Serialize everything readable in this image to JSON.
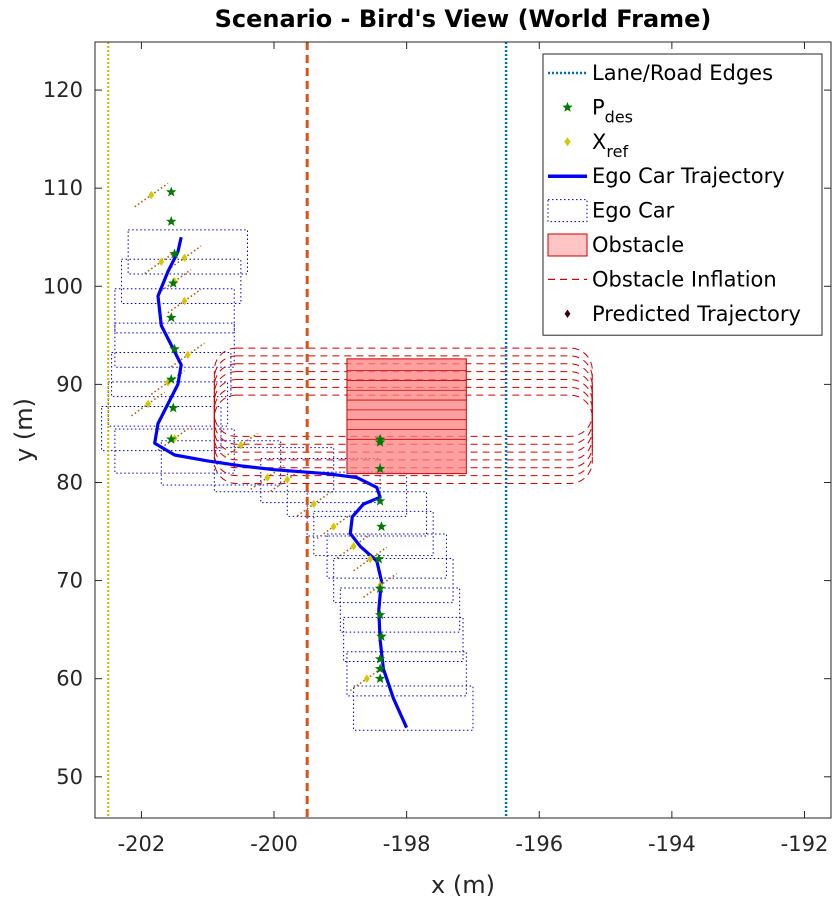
{
  "chart_data": {
    "type": "scatter",
    "title": "Scenario - Bird's View (World Frame)",
    "xlabel": "x (m)",
    "ylabel": "y (m)",
    "xlim": [
      -202.7,
      -191.6
    ],
    "ylim": [
      45.8,
      124.9
    ],
    "xticks": [
      -202,
      -200,
      -198,
      -196,
      -194,
      -192
    ],
    "xtick_labels": [
      "-202",
      "-200",
      "-198",
      "-196",
      "-194",
      "-192"
    ],
    "yticks": [
      50,
      60,
      70,
      80,
      90,
      100,
      110,
      120
    ],
    "ytick_labels": [
      "50",
      "60",
      "70",
      "80",
      "90",
      "100",
      "110",
      "120"
    ],
    "grid": false,
    "legend_position": "top-right",
    "legend": [
      {
        "key": "lane",
        "label": "Lane/Road Edges",
        "sub": ""
      },
      {
        "key": "pdes",
        "label": "P",
        "sub": "des"
      },
      {
        "key": "xref",
        "label": "X",
        "sub": "ref"
      },
      {
        "key": "ego_traj",
        "label": "Ego Car Trajectory",
        "sub": ""
      },
      {
        "key": "ego_car",
        "label": "Ego Car",
        "sub": ""
      },
      {
        "key": "obstacle",
        "label": "Obstacle",
        "sub": ""
      },
      {
        "key": "inflation",
        "label": "Obstacle Inflation",
        "sub": ""
      },
      {
        "key": "predicted",
        "label": "Predicted Trajectory",
        "sub": ""
      }
    ],
    "colors": {
      "lane_left": "#c9b400",
      "lane_center": "#d95319",
      "lane_right": "#0072bd",
      "pdes": "#007a00",
      "xref": "#d4c800",
      "ego_traj": "#0000ff",
      "ego_car": "#0000cc",
      "obstacle_fill": "#ff8080",
      "obstacle_edge": "#cc0000",
      "inflation": "#d00000",
      "predicted": "#33001a"
    },
    "lane_lines": [
      {
        "name": "left-edge",
        "x": -202.5
      },
      {
        "name": "center-line",
        "x": -199.5
      },
      {
        "name": "right-edge",
        "x": -196.5
      }
    ],
    "obstacle": {
      "x_range": [
        -198.9,
        -197.1
      ],
      "y_range": [
        80.9,
        92.6
      ],
      "history_y": [
        84.4,
        85.4,
        86.4,
        87.4,
        88.4,
        89.4,
        90.4,
        91.4
      ]
    },
    "inflation": {
      "x_range": [
        -200.9,
        -195.2
      ],
      "y_centers": [
        84.4,
        85.2,
        86.0,
        86.8,
        87.6,
        88.4,
        89.2
      ],
      "half_height": 4.5
    },
    "ego_trajectory": {
      "x": [
        -198.0,
        -198.2,
        -198.35,
        -198.4,
        -198.42,
        -198.4,
        -198.38,
        -198.45,
        -198.7,
        -198.85,
        -198.82,
        -198.65,
        -198.4,
        -198.45,
        -198.75,
        -199.2,
        -199.6,
        -200.0,
        -200.5,
        -201.0,
        -201.5,
        -201.8,
        -201.75,
        -201.6,
        -201.45,
        -201.4,
        -201.55,
        -201.7,
        -201.75,
        -201.6,
        -201.45,
        -201.4
      ],
      "y": [
        55.0,
        58.0,
        61.0,
        64.0,
        67.0,
        68.5,
        70.0,
        72.0,
        73.5,
        74.8,
        76.5,
        77.8,
        78.5,
        79.5,
        80.5,
        80.9,
        81.1,
        81.3,
        81.7,
        82.2,
        82.8,
        84.0,
        86.0,
        88.0,
        90.0,
        92.0,
        94.0,
        96.0,
        99.0,
        101.5,
        103.5,
        105.0
      ]
    },
    "p_des": {
      "x": [
        -198.4,
        -198.4,
        -198.4,
        -198.38,
        -198.4,
        -198.4,
        -198.42,
        -198.38,
        -198.4,
        -198.4,
        -198.4,
        -198.4,
        -201.55,
        -201.52,
        -201.55,
        -201.5,
        -201.55,
        -201.52,
        -201.5,
        -201.55,
        -201.55
      ],
      "y": [
        60.0,
        61.0,
        62.0,
        64.3,
        66.5,
        69.2,
        72.2,
        75.5,
        78.1,
        81.4,
        84.1,
        84.4,
        84.4,
        87.6,
        90.5,
        93.6,
        96.8,
        100.3,
        103.3,
        106.6,
        109.6
      ]
    },
    "x_ref": {
      "x": [
        -198.6,
        -198.4,
        -198.55,
        -198.8,
        -199.1,
        -199.4,
        -199.8,
        -200.1,
        -200.5,
        -201.5,
        -201.9,
        -201.6,
        -201.3,
        -201.35,
        -201.5,
        -201.7,
        -201.35,
        -201.85
      ],
      "y": [
        60.0,
        69.5,
        72.2,
        73.5,
        75.5,
        77.8,
        80.3,
        80.5,
        83.8,
        84.5,
        88.0,
        90.2,
        93.0,
        98.5,
        100.5,
        102.5,
        102.9,
        109.3
      ]
    },
    "ego_car_boxes": {
      "centers": [
        [
          -197.9,
          57.0
        ],
        [
          -198.0,
          60.5
        ],
        [
          -198.05,
          64.0
        ],
        [
          -198.1,
          67.0
        ],
        [
          -198.2,
          70.0
        ],
        [
          -198.3,
          72.5
        ],
        [
          -198.5,
          74.8
        ],
        [
          -198.6,
          76.8
        ],
        [
          -198.9,
          78.8
        ],
        [
          -199.3,
          80.2
        ],
        [
          -200.0,
          81.3
        ],
        [
          -200.8,
          82.0
        ],
        [
          -201.5,
          83.2
        ],
        [
          -201.7,
          85.5
        ],
        [
          -201.6,
          88.0
        ],
        [
          -201.55,
          91.0
        ],
        [
          -201.5,
          94.0
        ],
        [
          -201.5,
          97.5
        ],
        [
          -201.4,
          100.5
        ],
        [
          -201.3,
          103.5
        ]
      ],
      "length": 4.5,
      "width": 1.8
    }
  }
}
